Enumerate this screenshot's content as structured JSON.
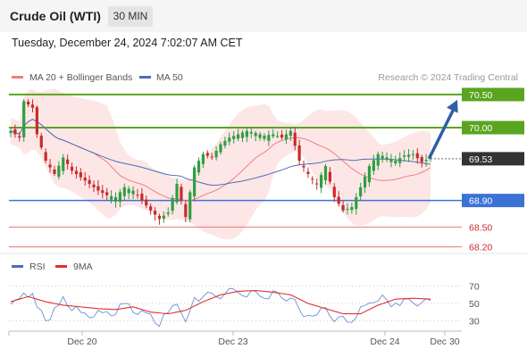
{
  "header": {
    "title": "Crude Oil (WTI)",
    "timeframe": "30 MIN",
    "datetime": "Tuesday, December 24, 2024 7:02:07 AM CET"
  },
  "legend": {
    "ma20_label": "MA 20 + Bollinger Bands",
    "ma50_label": "MA 50",
    "copyright": "Research © 2024 Trading Central"
  },
  "rsi_legend": {
    "rsi_label": "RSI",
    "ma9_label": "9MA"
  },
  "colors": {
    "resistance": "#5aa51f",
    "support": "#3b73d4",
    "minor_support": "#e87474",
    "current": "#333333",
    "candle_up": "#2f9e44",
    "candle_down": "#c92a2a",
    "ma20": "#f08080",
    "ma50": "#4a6fb5",
    "bollinger_fill": "#fde2e2",
    "arrow": "#2e5fa8"
  },
  "chart_data": [
    {
      "type": "candlestick",
      "series": [
        {
          "name": "MA 20 + Bollinger Bands"
        },
        {
          "name": "MA 50"
        }
      ],
      "ylim": [
        68.1,
        70.62
      ],
      "levels": [
        {
          "value": 70.5,
          "label": "70.50",
          "kind": "resistance"
        },
        {
          "value": 70.0,
          "label": "70.00",
          "kind": "resistance"
        },
        {
          "value": 69.53,
          "label": "69.53",
          "kind": "current"
        },
        {
          "value": 68.9,
          "label": "68.90",
          "kind": "support"
        },
        {
          "value": 68.5,
          "label": "68.50",
          "kind": "minor_support"
        },
        {
          "value": 68.2,
          "label": "68.20",
          "kind": "minor_support"
        }
      ],
      "x_tick_labels": [
        "Dec 20",
        "Dec 23",
        "Dec 24",
        "Dec 30"
      ],
      "projection": {
        "from": 69.55,
        "to": 70.5
      },
      "waypoints": [
        [
          0,
          69.95
        ],
        [
          2,
          69.85
        ],
        [
          3,
          70.4
        ],
        [
          5,
          70.3
        ],
        [
          6,
          69.9
        ],
        [
          8,
          69.5
        ],
        [
          10,
          69.3
        ],
        [
          12,
          69.55
        ],
        [
          14,
          69.35
        ],
        [
          16,
          69.25
        ],
        [
          18,
          69.15
        ],
        [
          20,
          69.05
        ],
        [
          22,
          68.98
        ],
        [
          24,
          68.95
        ],
        [
          26,
          69.1
        ],
        [
          28,
          69.05
        ],
        [
          30,
          68.9
        ],
        [
          32,
          68.75
        ],
        [
          34,
          68.62
        ],
        [
          36,
          68.72
        ],
        [
          38,
          69.15
        ],
        [
          40,
          68.65
        ],
        [
          42,
          69.4
        ],
        [
          44,
          69.6
        ],
        [
          46,
          69.55
        ],
        [
          48,
          69.75
        ],
        [
          50,
          69.85
        ],
        [
          52,
          69.9
        ],
        [
          54,
          69.95
        ],
        [
          56,
          69.92
        ],
        [
          58,
          69.88
        ],
        [
          60,
          69.9
        ],
        [
          62,
          69.85
        ],
        [
          64,
          69.95
        ],
        [
          66,
          69.5
        ],
        [
          68,
          69.3
        ],
        [
          70,
          69.15
        ],
        [
          72,
          69.42
        ],
        [
          74,
          68.95
        ],
        [
          76,
          68.75
        ],
        [
          78,
          68.8
        ],
        [
          80,
          69.1
        ],
        [
          82,
          69.42
        ],
        [
          84,
          69.6
        ],
        [
          86,
          69.55
        ],
        [
          88,
          69.5
        ],
        [
          90,
          69.58
        ],
        [
          92,
          69.6
        ],
        [
          94,
          69.48
        ],
        [
          96,
          69.55
        ]
      ]
    },
    {
      "type": "line",
      "series": [
        {
          "name": "RSI"
        },
        {
          "name": "9MA"
        }
      ],
      "ylim": [
        20,
        80
      ],
      "y_tick_labels": [
        "70",
        "50",
        "30"
      ],
      "y_ticks": [
        70,
        50,
        30
      ],
      "rsi": [
        [
          0,
          52
        ],
        [
          2,
          55
        ],
        [
          3,
          68
        ],
        [
          5,
          62
        ],
        [
          6,
          45
        ],
        [
          8,
          38
        ],
        [
          10,
          42
        ],
        [
          12,
          55
        ],
        [
          14,
          48
        ],
        [
          16,
          42
        ],
        [
          18,
          40
        ],
        [
          20,
          44
        ],
        [
          22,
          40
        ],
        [
          24,
          45
        ],
        [
          26,
          52
        ],
        [
          28,
          48
        ],
        [
          30,
          40
        ],
        [
          32,
          35
        ],
        [
          34,
          32
        ],
        [
          36,
          38
        ],
        [
          38,
          55
        ],
        [
          40,
          30
        ],
        [
          42,
          58
        ],
        [
          44,
          62
        ],
        [
          46,
          60
        ],
        [
          48,
          64
        ],
        [
          50,
          65
        ],
        [
          52,
          66
        ],
        [
          54,
          66
        ],
        [
          56,
          64
        ],
        [
          58,
          62
        ],
        [
          60,
          62
        ],
        [
          62,
          60
        ],
        [
          64,
          62
        ],
        [
          66,
          45
        ],
        [
          68,
          40
        ],
        [
          70,
          38
        ],
        [
          72,
          48
        ],
        [
          74,
          36
        ],
        [
          76,
          33
        ],
        [
          78,
          35
        ],
        [
          80,
          45
        ],
        [
          82,
          55
        ],
        [
          84,
          58
        ],
        [
          86,
          56
        ],
        [
          88,
          54
        ],
        [
          90,
          56
        ],
        [
          92,
          57
        ],
        [
          94,
          52
        ],
        [
          96,
          55
        ]
      ],
      "ma9": [
        [
          0,
          52
        ],
        [
          4,
          58
        ],
        [
          8,
          52
        ],
        [
          12,
          48
        ],
        [
          16,
          46
        ],
        [
          20,
          44
        ],
        [
          24,
          43
        ],
        [
          28,
          46
        ],
        [
          32,
          40
        ],
        [
          36,
          38
        ],
        [
          40,
          42
        ],
        [
          44,
          52
        ],
        [
          48,
          60
        ],
        [
          52,
          64
        ],
        [
          56,
          65
        ],
        [
          60,
          63
        ],
        [
          64,
          60
        ],
        [
          68,
          50
        ],
        [
          72,
          44
        ],
        [
          76,
          38
        ],
        [
          80,
          38
        ],
        [
          84,
          48
        ],
        [
          88,
          55
        ],
        [
          92,
          56
        ],
        [
          96,
          55
        ]
      ]
    }
  ]
}
